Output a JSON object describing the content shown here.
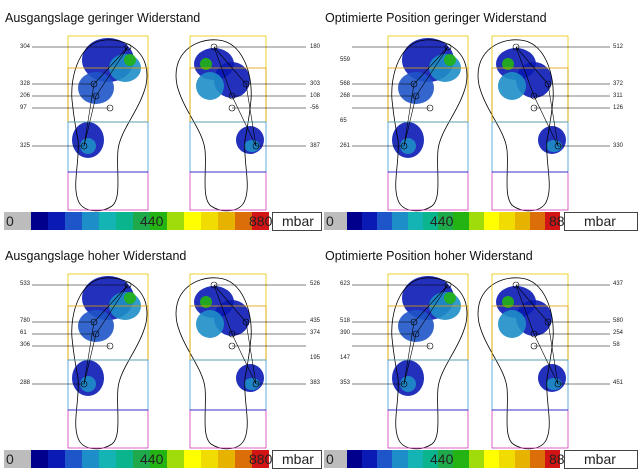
{
  "legend": {
    "min": "0",
    "mid": "440",
    "max": "880",
    "unit": "mbar",
    "colors": [
      "#bcbcbc",
      "#00008c",
      "#0a1ab4",
      "#1e55c8",
      "#1e8ec8",
      "#14b4b4",
      "#0ab48c",
      "#1eaa4b",
      "#23b414",
      "#a0dc0a",
      "#ffff00",
      "#f0dc00",
      "#e6b400",
      "#dc6e0a",
      "#d21414"
    ]
  },
  "panels": [
    {
      "title": "Ausgangslage geringer Widerstand",
      "left_labels": [
        "304",
        "328",
        "206",
        "97",
        "325"
      ],
      "right_labels": [
        "180",
        "303",
        "108",
        "-56",
        "387"
      ]
    },
    {
      "title": "Optimierte Position geringer Widerstand",
      "left_labels": [
        "559",
        "568",
        "268",
        "65",
        "261"
      ],
      "right_labels": [
        "512",
        "372",
        "311",
        "126",
        "330"
      ]
    },
    {
      "title": "Ausgangslage hoher Widerstand",
      "left_labels": [
        "533",
        "780",
        "61",
        "306",
        "288"
      ],
      "right_labels": [
        "526",
        "435",
        "374",
        "195",
        "383"
      ]
    },
    {
      "title": "Optimierte Position hoher Widerstand",
      "left_labels": [
        "623",
        "518",
        "390",
        "147",
        "353"
      ],
      "right_labels": [
        "437",
        "580",
        "254",
        "58",
        "451"
      ]
    }
  ]
}
